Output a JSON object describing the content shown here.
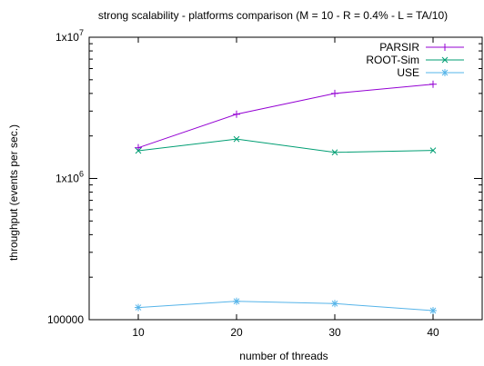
{
  "chart_data": {
    "type": "line",
    "title": "strong scalability - platforms comparison (M = 10 - R = 0.4% - L = TA/10)",
    "xlabel": "number of threads",
    "ylabel": "throughput (events per sec.)",
    "x": [
      10,
      20,
      30,
      40
    ],
    "x_ticks": [
      "10",
      "20",
      "30",
      "40"
    ],
    "xlim": [
      5,
      45
    ],
    "y_scale": "log",
    "ylim": [
      100000,
      10000000
    ],
    "y_ticks": [
      {
        "value": 10000000,
        "base": "1x10",
        "exp": "7"
      },
      {
        "value": 1000000,
        "base": "1x10",
        "exp": "6"
      },
      {
        "value": 100000,
        "base": "100000",
        "exp": ""
      }
    ],
    "legend_position": "top-right",
    "grid": false,
    "series": [
      {
        "name": "PARSIR",
        "color": "#9400d3",
        "marker": "plus",
        "values": [
          1650000,
          2850000,
          4000000,
          4650000
        ]
      },
      {
        "name": "ROOT-Sim",
        "color": "#009e73",
        "marker": "cross",
        "values": [
          1570000,
          1900000,
          1530000,
          1580000
        ]
      },
      {
        "name": "USE",
        "color": "#56b4e9",
        "marker": "star",
        "values": [
          122000,
          135000,
          130000,
          116000
        ]
      }
    ]
  }
}
